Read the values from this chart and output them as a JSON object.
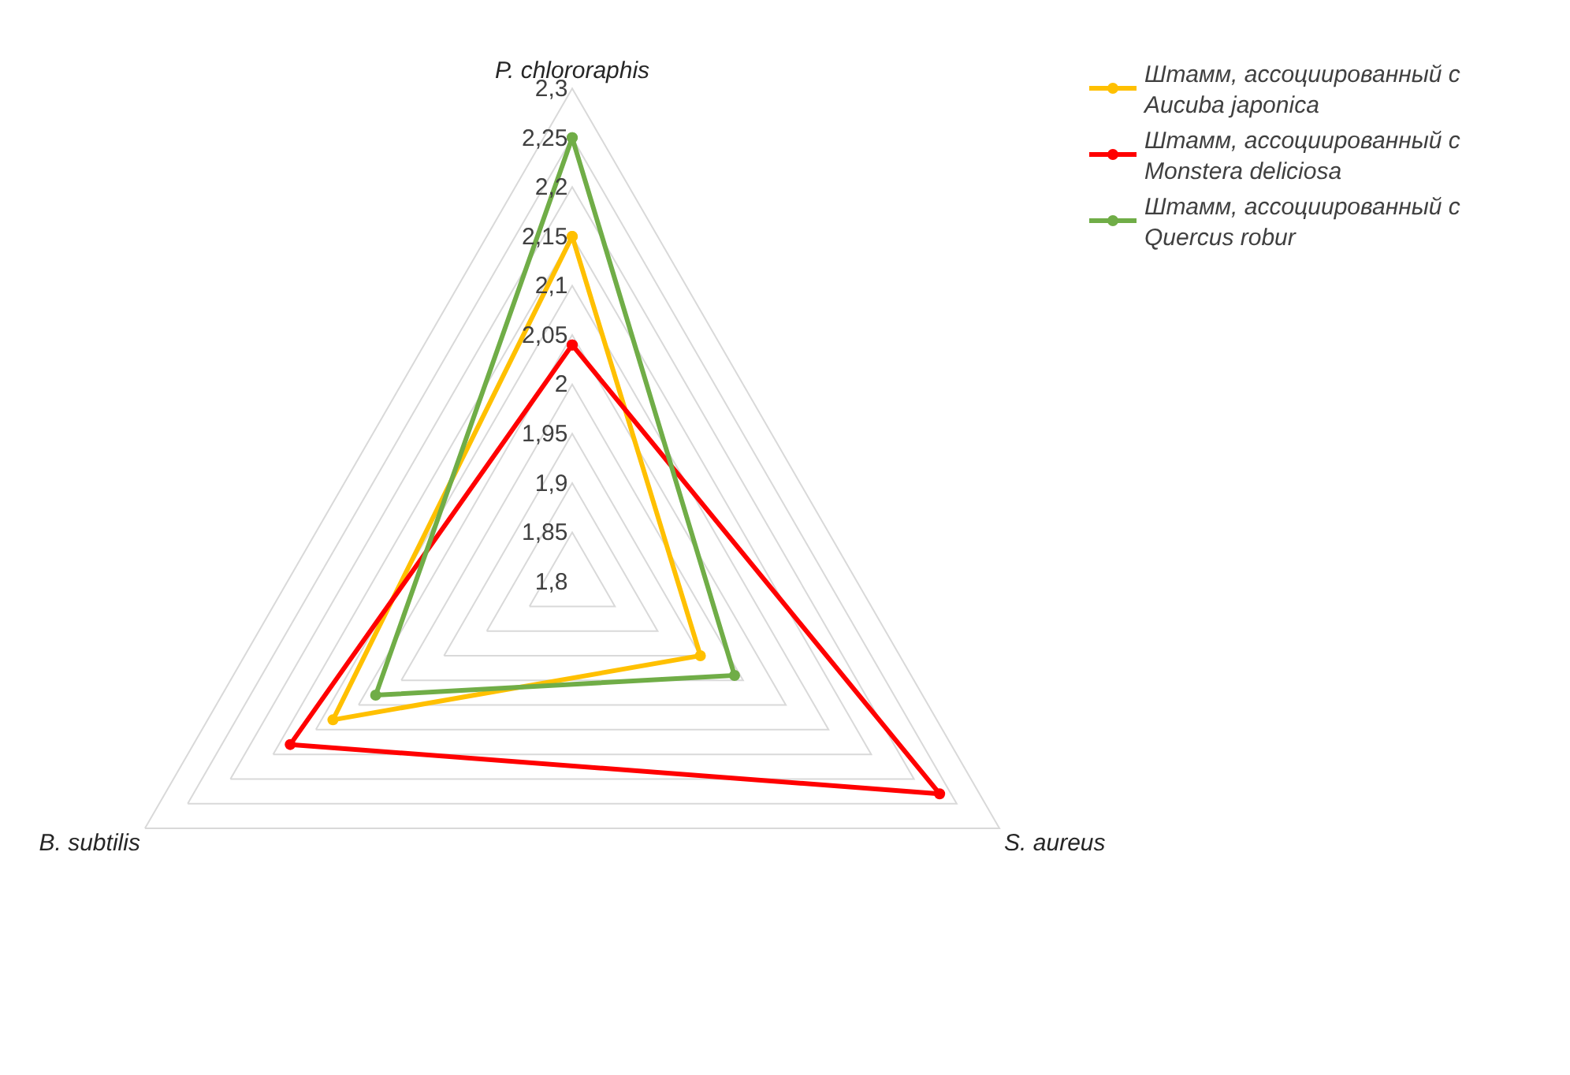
{
  "chart_data": {
    "type": "radar",
    "categories": [
      "P. chlororaphis",
      "S. aureus",
      "B. subtilis"
    ],
    "series": [
      {
        "name": "Штамм, ассоциированный с Aucuba japonica",
        "color": "#ffc000",
        "values": [
          2.15,
          1.95,
          2.08
        ]
      },
      {
        "name": "Штамм, ассоциированный с Monstera deliciosa",
        "color": "#ff0000",
        "values": [
          2.04,
          2.23,
          2.13
        ]
      },
      {
        "name": "Штамм, ассоциированный с Quercus robur",
        "color": "#70ad47",
        "values": [
          2.25,
          1.99,
          2.03
        ]
      }
    ],
    "ylim": [
      1.8,
      2.3
    ],
    "yticks": [
      {
        "value": 1.8,
        "label": "1,8"
      },
      {
        "value": 1.85,
        "label": "1,85"
      },
      {
        "value": 1.9,
        "label": "1,9"
      },
      {
        "value": 1.95,
        "label": "1,95"
      },
      {
        "value": 2.0,
        "label": "2"
      },
      {
        "value": 2.05,
        "label": "2,05"
      },
      {
        "value": 2.1,
        "label": "2,1"
      },
      {
        "value": 2.15,
        "label": "2,15"
      },
      {
        "value": 2.2,
        "label": "2,2"
      },
      {
        "value": 2.25,
        "label": "2,25"
      },
      {
        "value": 2.3,
        "label": "2,3"
      }
    ],
    "grid": true,
    "legend": "top right",
    "marker": "circle",
    "line_style": "solid"
  }
}
